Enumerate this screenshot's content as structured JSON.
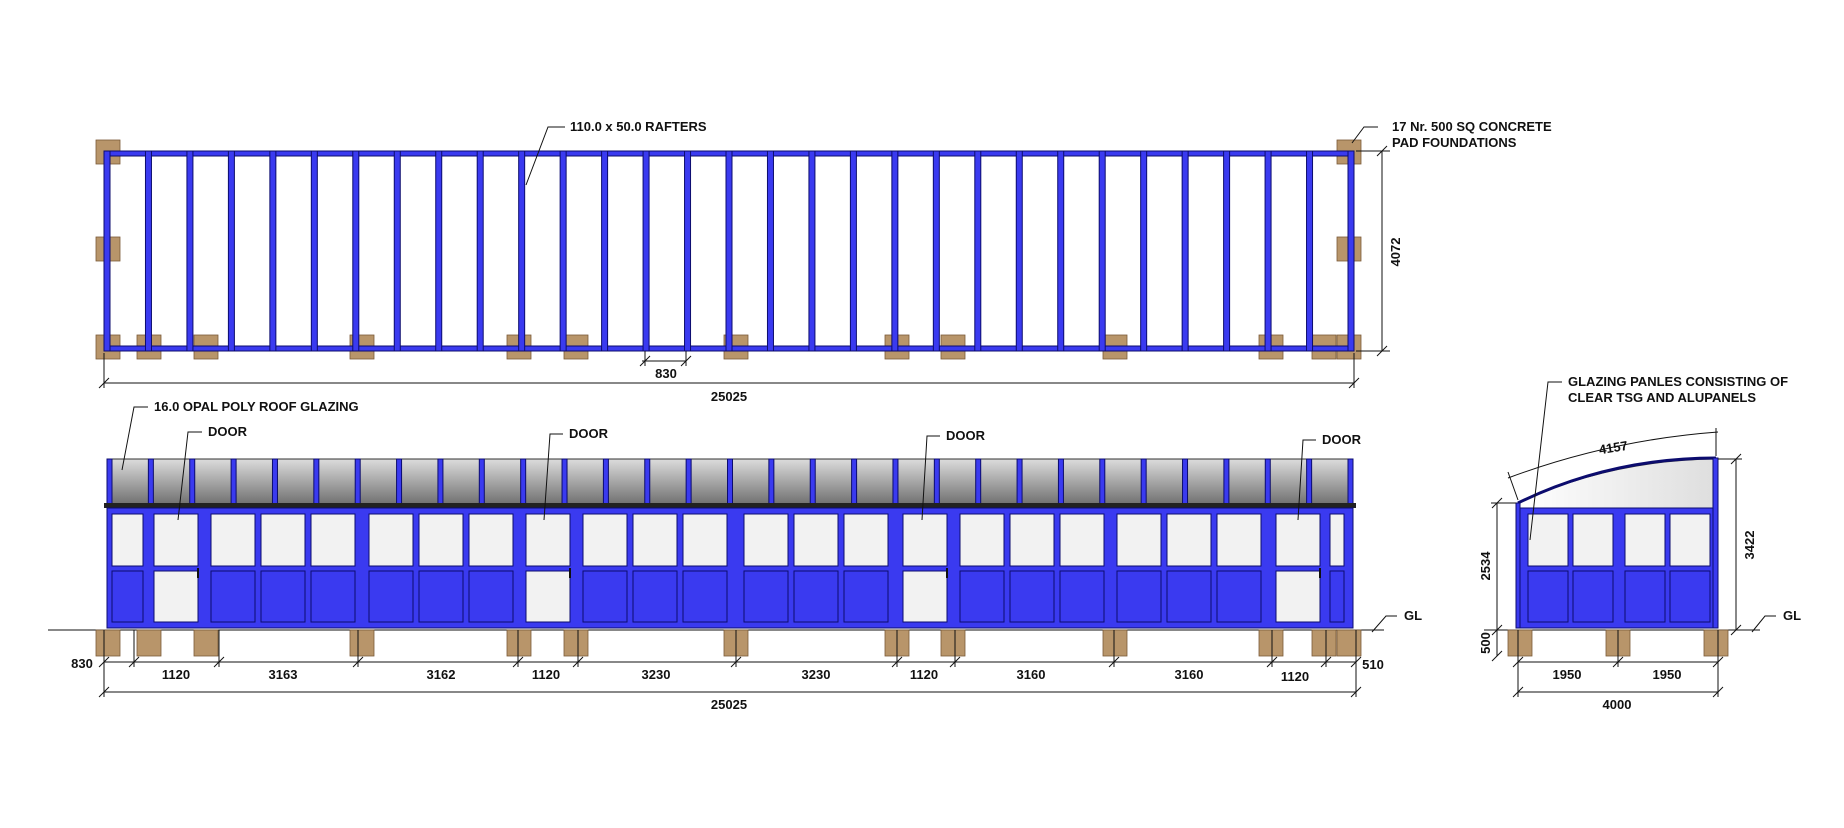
{
  "plan": {
    "rafters_label": "110.0 x 50.0 RAFTERS",
    "foundations_label": [
      "17 Nr. 500 SQ CONCRETE",
      "PAD FOUNDATIONS"
    ],
    "depth_dim": "4072",
    "spacing_dim": "830",
    "length_dim": "25025"
  },
  "front": {
    "roof_label": "16.0 OPAL POLY ROOF GLAZING",
    "door_labels": [
      "DOOR",
      "DOOR",
      "DOOR",
      "DOOR"
    ],
    "ground_label": "GL",
    "left_dim": "830",
    "right_dim": "510",
    "segment_dims": [
      "1120",
      "3163",
      "3162",
      "1120",
      "3230",
      "3230",
      "1120",
      "3160",
      "3160",
      "1120"
    ],
    "total_dim": "25025"
  },
  "side": {
    "glazing_label": [
      "GLAZING PANLES CONSISTING OF",
      "CLEAR TSG AND ALUPANELS"
    ],
    "arc_dim": "4157",
    "height_dim": "3422",
    "wall_dim": "2534",
    "base_dim": "500",
    "ground_label": "GL",
    "bay_dims": [
      "1950",
      "1950"
    ],
    "width_dim": "4000"
  }
}
